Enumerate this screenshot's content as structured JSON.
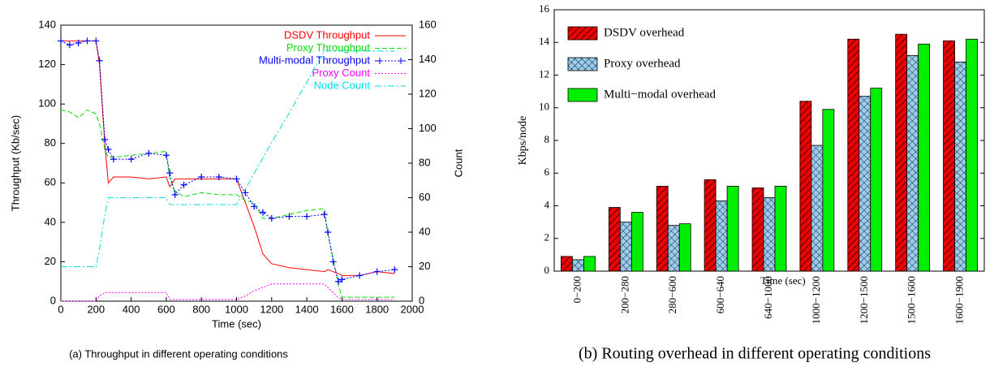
{
  "chart_data": [
    {
      "type": "line",
      "caption": "(a) Throughput in different operating conditions",
      "xlabel": "Time (sec)",
      "ylabel": "Throughput (Kb/sec)",
      "y2label": "Count",
      "x": [
        0,
        50,
        100,
        150,
        200,
        220,
        250,
        270,
        300,
        400,
        500,
        600,
        620,
        650,
        700,
        800,
        900,
        1000,
        1050,
        1100,
        1150,
        1200,
        1300,
        1400,
        1500,
        1520,
        1550,
        1580,
        1600,
        1700,
        1800,
        1900
      ],
      "xlim": [
        0,
        2000
      ],
      "xticks": [
        0,
        200,
        400,
        600,
        800,
        1000,
        1200,
        1400,
        1600,
        1800,
        2000
      ],
      "ylim": [
        0,
        140
      ],
      "yticks": [
        0,
        20,
        40,
        60,
        80,
        100,
        120,
        140
      ],
      "y2lim": [
        0,
        160
      ],
      "y2ticks": [
        0,
        20,
        40,
        60,
        80,
        100,
        120,
        140,
        160
      ],
      "legend": "upper right",
      "series": [
        {
          "name": "DSDV Throughput",
          "color": "#ff0000",
          "style": "solid",
          "values": [
            132,
            132,
            132,
            132,
            132,
            120,
            80,
            60,
            63,
            63,
            62,
            63,
            58,
            62,
            62,
            62,
            62,
            62,
            50,
            38,
            24,
            19,
            17,
            16,
            15,
            16,
            15,
            14,
            13,
            13,
            15,
            14
          ]
        },
        {
          "name": "Proxy Throughput",
          "color": "#00dd00",
          "style": "dashed",
          "values": [
            97,
            96,
            93,
            97,
            95,
            90,
            77,
            73,
            73,
            74,
            75,
            76,
            62,
            56,
            53,
            55,
            54,
            54,
            51,
            50,
            42,
            42,
            44,
            46,
            47,
            34,
            22,
            8,
            2,
            2,
            2,
            2
          ]
        },
        {
          "name": "Multi-modal Throughput",
          "color": "#0000ff",
          "style": "dotted",
          "marker": "+",
          "values": [
            132,
            130,
            131,
            132,
            132,
            122,
            82,
            77,
            72,
            72,
            75,
            74,
            65,
            54,
            59,
            63,
            63,
            62,
            55,
            48,
            45,
            42,
            43,
            43,
            44,
            35,
            20,
            10,
            11,
            13,
            15,
            16
          ]
        },
        {
          "name": "Proxy Count",
          "color": "#ff00ff",
          "style": "dotted",
          "axis": "y2",
          "values": [
            0,
            0,
            0,
            0,
            0,
            3,
            5,
            5,
            5,
            5,
            5,
            5,
            1,
            1,
            1,
            1,
            1,
            1,
            3,
            6,
            8,
            10,
            10,
            10,
            10,
            8,
            5,
            2,
            1,
            1,
            1,
            1
          ]
        },
        {
          "name": "Node Count",
          "color": "#00dddd",
          "style": "dashdot",
          "axis": "y2",
          "values": [
            20,
            20,
            20,
            20,
            20,
            30,
            50,
            60,
            60,
            60,
            60,
            60,
            56,
            56,
            56,
            56,
            56,
            56,
            65,
            74,
            83,
            92,
            109,
            127,
            145,
            145,
            145,
            145,
            145,
            145,
            145,
            145
          ]
        }
      ]
    },
    {
      "type": "bar",
      "caption": "(b) Routing overhead in different operating conditions",
      "xlabel": "Time (sec)",
      "ylabel": "Kbps/node",
      "categories": [
        "0−200",
        "200−280",
        "280−600",
        "600−640",
        "640−1000",
        "1000−1200",
        "1200−1500",
        "1500−1600",
        "1600−1900"
      ],
      "ylim": [
        0,
        16
      ],
      "yticks": [
        0,
        2,
        4,
        6,
        8,
        10,
        12,
        14,
        16
      ],
      "legend": "upper left",
      "series": [
        {
          "name": "DSDV overhead",
          "color": "#ee0000",
          "hatch": "diagonal",
          "values": [
            0.9,
            3.9,
            5.2,
            5.6,
            5.1,
            10.4,
            14.2,
            14.5,
            14.1
          ]
        },
        {
          "name": "Proxy overhead",
          "color": "#99ccee",
          "hatch": "cross",
          "values": [
            0.7,
            3.0,
            2.8,
            4.3,
            4.5,
            7.7,
            10.7,
            13.2,
            12.8
          ]
        },
        {
          "name": "Multi−modal overhead",
          "color": "#00ee00",
          "values": [
            0.9,
            3.6,
            2.9,
            5.2,
            5.2,
            9.9,
            11.2,
            13.9,
            14.2
          ]
        }
      ]
    }
  ]
}
